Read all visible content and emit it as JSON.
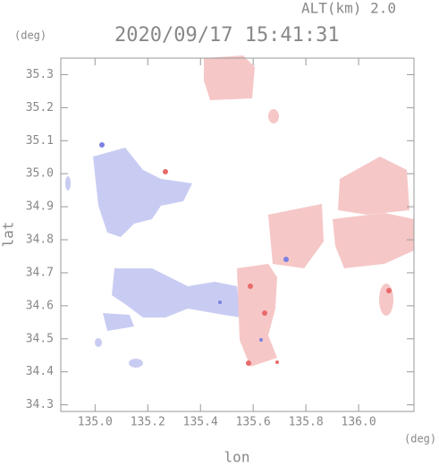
{
  "chart_data": {
    "type": "map",
    "title": "2020/09/17 15:41:31",
    "subtitle": "ALT(km) 2.0",
    "x_label": "lon",
    "x_unit": "(deg)",
    "y_label": "lat",
    "y_unit": "(deg)",
    "xlim": [
      134.87,
      136.21
    ],
    "ylim": [
      34.28,
      35.35
    ],
    "xticks": [
      {
        "value": 135.0,
        "label": "135.0"
      },
      135.2,
      135.4,
      135.6,
      135.8,
      {
        "value": 136.0,
        "label": "136.0"
      }
    ],
    "yticks": [
      34.3,
      34.4,
      34.5,
      34.6,
      34.7,
      34.8,
      34.9,
      {
        "value": 35.0,
        "label": "35.0"
      },
      35.1,
      35.2,
      35.3
    ]
  }
}
